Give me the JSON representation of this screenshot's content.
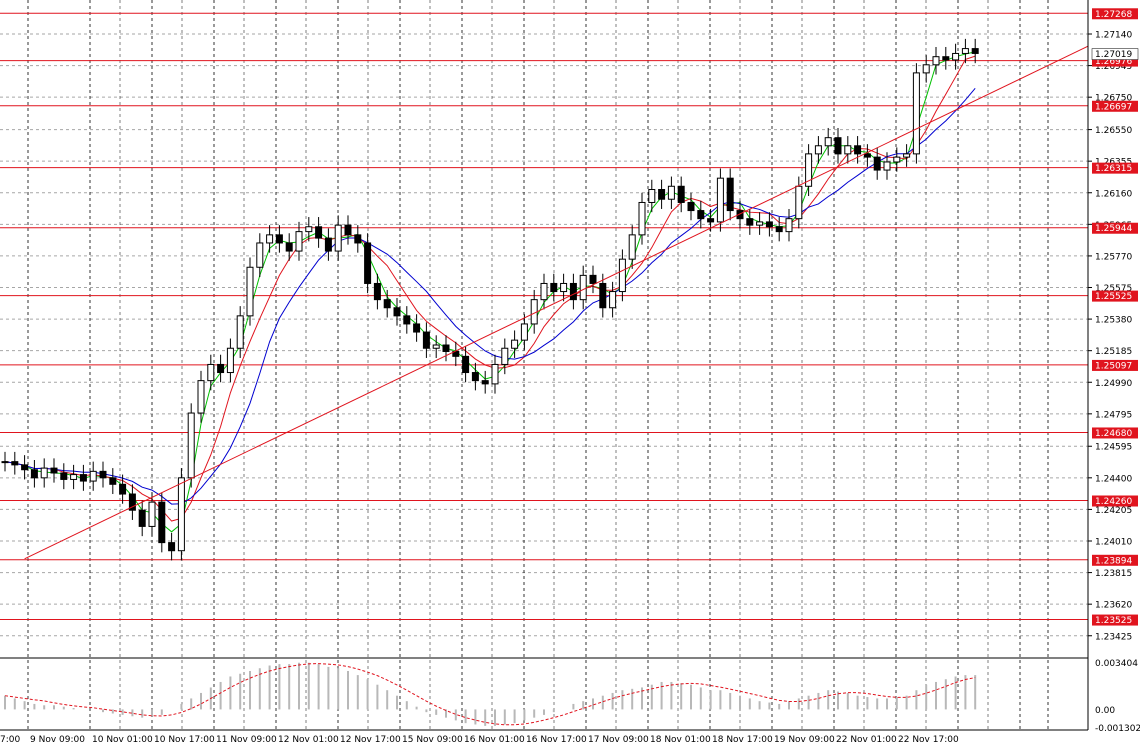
{
  "chart_data": [
    {
      "type": "candlestick",
      "timeframe_labels": [
        "7:00",
        "9 Nov 09:00",
        "10 Nov 01:00",
        "10 Nov 17:00",
        "11 Nov 09:00",
        "12 Nov 01:00",
        "12 Nov 17:00",
        "15 Nov 09:00",
        "16 Nov 01:00",
        "16 Nov 17:00",
        "17 Nov 09:00",
        "18 Nov 01:00",
        "18 Nov 17:00",
        "19 Nov 09:00",
        "22 Nov 01:00",
        "22 Nov 17:00"
      ],
      "ylim": [
        1.233,
        1.2735
      ],
      "y_ticks": [
        "1.27140",
        "1.26945",
        "1.26750",
        "1.26550",
        "1.26355",
        "1.26160",
        "1.25965",
        "1.25770",
        "1.25575",
        "1.25380",
        "1.25185",
        "1.24990",
        "1.24795",
        "1.24595",
        "1.24400",
        "1.24205",
        "1.24010",
        "1.23815",
        "1.23620",
        "1.23425"
      ],
      "grid": true,
      "current_price": "1.27019",
      "levels": [
        {
          "value": 1.27268,
          "label": "1.27268",
          "color": "#e0141e"
        },
        {
          "value": 1.26976,
          "label": "1.26976",
          "color": "#e0141e"
        },
        {
          "value": 1.26697,
          "label": "1.26697",
          "color": "#e0141e"
        },
        {
          "value": 1.26315,
          "label": "1.26315",
          "color": "#e0141e"
        },
        {
          "value": 1.25944,
          "label": "1.25944",
          "color": "#e0141e"
        },
        {
          "value": 1.25525,
          "label": "1.25525",
          "color": "#e0141e"
        },
        {
          "value": 1.25097,
          "label": "1.25097",
          "color": "#e0141e"
        },
        {
          "value": 1.2468,
          "label": "1.24680",
          "color": "#e0141e"
        },
        {
          "value": 1.2426,
          "label": "1.24260",
          "color": "#e0141e"
        },
        {
          "value": 1.23894,
          "label": "1.23894",
          "color": "#e0141e"
        },
        {
          "value": 1.23525,
          "label": "1.23525",
          "color": "#e0141e"
        }
      ],
      "trendline": {
        "from_bar": 2,
        "from_value": 1.239,
        "to_bar": 98,
        "to_value": 1.267,
        "color": "#e0141e"
      },
      "ma_colors": {
        "fast": "#00c000",
        "mid": "#e0141e",
        "slow": "#0000d0"
      },
      "close": [
        1.245,
        1.2448,
        1.2445,
        1.244,
        1.2446,
        1.2443,
        1.2439,
        1.2442,
        1.2438,
        1.2444,
        1.244,
        1.2436,
        1.243,
        1.242,
        1.241,
        1.2425,
        1.24,
        1.2395,
        1.244,
        1.248,
        1.25,
        1.251,
        1.2505,
        1.252,
        1.254,
        1.257,
        1.2585,
        1.259,
        1.2585,
        1.258,
        1.2592,
        1.2595,
        1.2588,
        1.258,
        1.2596,
        1.259,
        1.2585,
        1.256,
        1.255,
        1.2545,
        1.254,
        1.2535,
        1.253,
        1.252,
        1.2522,
        1.2518,
        1.2515,
        1.2505,
        1.25,
        1.2498,
        1.251,
        1.252,
        1.2525,
        1.2535,
        1.255,
        1.256,
        1.2555,
        1.256,
        1.255,
        1.2565,
        1.256,
        1.2545,
        1.2555,
        1.2575,
        1.259,
        1.261,
        1.2618,
        1.2612,
        1.262,
        1.261,
        1.2605,
        1.26,
        1.2598,
        1.2625,
        1.2605,
        1.26,
        1.2596,
        1.2598,
        1.2595,
        1.2592,
        1.26,
        1.262,
        1.264,
        1.2645,
        1.265,
        1.264,
        1.2645,
        1.264,
        1.2638,
        1.263,
        1.2635,
        1.2638,
        1.264,
        1.269,
        1.2695,
        1.27,
        1.2698,
        1.2702,
        1.2705,
        1.2702
      ],
      "histogram": [
        0.001,
        0.0008,
        0.0006,
        0.0004,
        0.0003,
        0.0003,
        0.0002,
        0.0001,
        0.0,
        0.0,
        -0.0002,
        -0.0003,
        -0.0004,
        -0.0005,
        -0.0006,
        -0.0005,
        -0.0004,
        0.0,
        0.0004,
        0.0008,
        0.0012,
        0.0016,
        0.002,
        0.0024,
        0.0026,
        0.0028,
        0.003,
        0.0032,
        0.0033,
        0.0033,
        0.0034,
        0.0034,
        0.0033,
        0.0031,
        0.003,
        0.0028,
        0.0025,
        0.0022,
        0.0018,
        0.0014,
        0.001,
        0.0006,
        0.0002,
        -0.0002,
        -0.0004,
        -0.0006,
        -0.0008,
        -0.001,
        -0.0011,
        -0.0012,
        -0.0012,
        -0.0011,
        -0.001,
        -0.0008,
        -0.0006,
        -0.0004,
        -0.0002,
        0.0,
        0.0004,
        0.0006,
        0.0008,
        0.001,
        0.0012,
        0.0014,
        0.0015,
        0.0016,
        0.0018,
        0.002,
        0.002,
        0.0019,
        0.0018,
        0.0016,
        0.0014,
        0.0014,
        0.0012,
        0.001,
        0.0008,
        0.0006,
        0.0005,
        0.0004,
        0.0006,
        0.0008,
        0.001,
        0.0012,
        0.0014,
        0.0013,
        0.0012,
        0.001,
        0.0009,
        0.0008,
        0.0008,
        0.0009,
        0.001,
        0.0014,
        0.0018,
        0.002,
        0.0022,
        0.0024,
        0.0025,
        0.0025
      ],
      "indicator_ylim": [
        -0.0015,
        0.0036
      ],
      "indicator_ticks": [
        "0.003404",
        "0.00",
        "-0.001302"
      ]
    }
  ]
}
